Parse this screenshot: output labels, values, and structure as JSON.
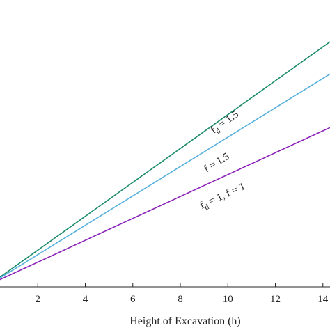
{
  "chart_data": {
    "type": "line",
    "xlabel": "Height of Excavation (h)",
    "ylabel": "",
    "xlim": [
      0,
      14.3
    ],
    "ylim": [
      0,
      1
    ],
    "x_ticks": [
      2,
      4,
      6,
      8,
      10,
      12,
      14
    ],
    "x_tick_labels": [
      "2",
      "4",
      "6",
      "8",
      "10",
      "12",
      "14"
    ],
    "grid": false,
    "series": [
      {
        "color": "#1a8a6a",
        "x": [
          0,
          14.3
        ],
        "y": [
          0.0,
          1.0
        ]
      },
      {
        "color": "#55b0dc",
        "x": [
          0,
          14.3
        ],
        "y": [
          0.0,
          0.867
        ]
      },
      {
        "color": "#8a22b8",
        "x": [
          0,
          14.3
        ],
        "y": [
          0.0,
          0.646
        ]
      }
    ],
    "annotations": [
      {
        "text": "f",
        "sub": "d",
        "rest": " = 1.5",
        "x": 9.4,
        "y": 0.62,
        "series": 0
      },
      {
        "text": "f = 1.5",
        "sub": "",
        "rest": "",
        "x": 9.1,
        "y": 0.46,
        "series": 1
      },
      {
        "text": "f",
        "sub": "d",
        "rest": " = 1, f = 1",
        "x": 8.9,
        "y": 0.31,
        "series": 2
      }
    ]
  }
}
